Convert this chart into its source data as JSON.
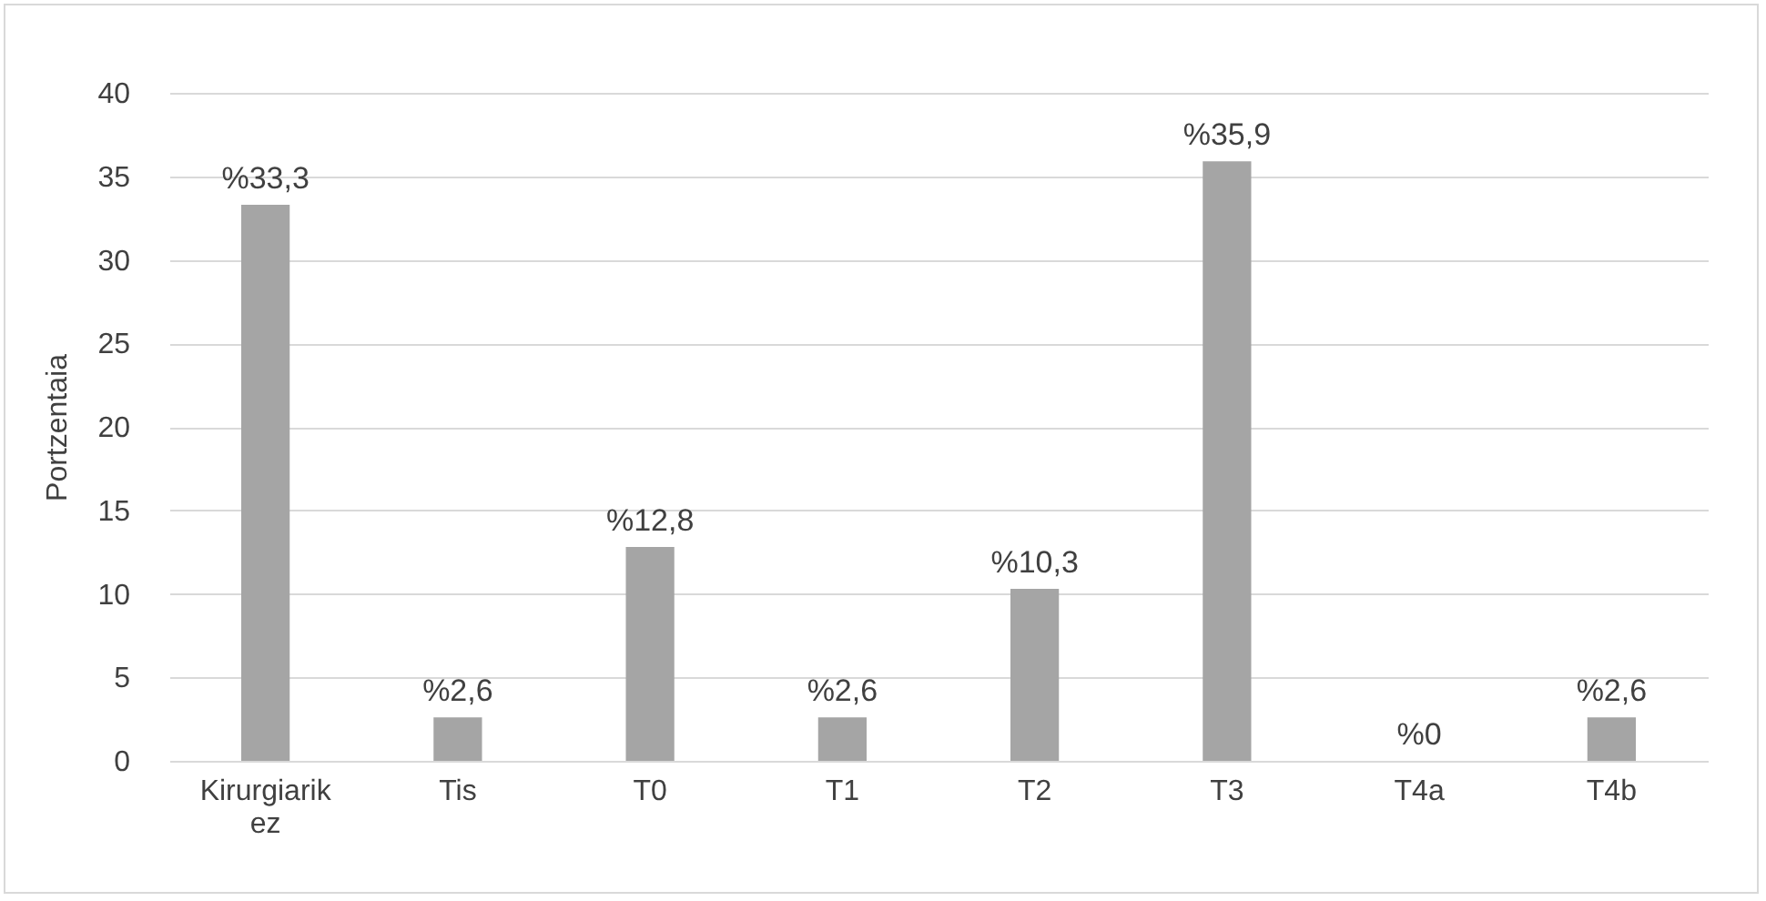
{
  "chart_data": {
    "type": "bar",
    "ylabel": "Portzentaia",
    "categories": [
      "Kirurgiarik ez",
      "Tis",
      "T0",
      "T1",
      "T2",
      "T3",
      "T4a",
      "T4b"
    ],
    "values": [
      33.3,
      2.6,
      12.8,
      2.6,
      10.3,
      35.9,
      0,
      2.6
    ],
    "value_labels": [
      "%33,3",
      "%2,6",
      "%12,8",
      "%2,6",
      "%10,3",
      "%35,9",
      "%0",
      "%2,6"
    ],
    "color": "#a5a5a5",
    "ylim": [
      0,
      40
    ],
    "yticks": [
      0,
      5,
      10,
      15,
      20,
      25,
      30,
      35,
      40
    ],
    "grid": "y"
  }
}
